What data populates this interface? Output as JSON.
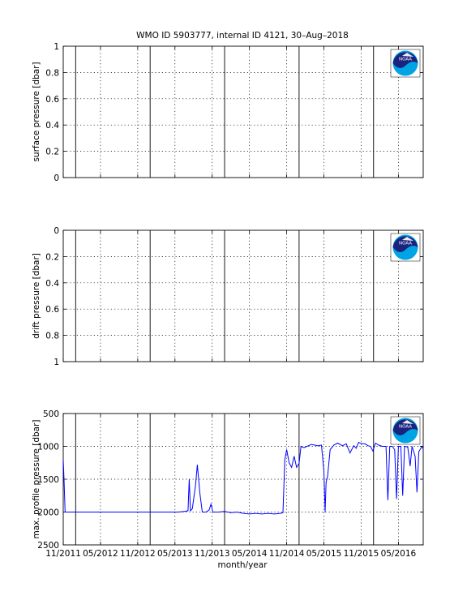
{
  "figure_title": "WMO ID 5903777, internal ID 4121, 30–Aug–2018",
  "logo_text": "NOAA",
  "colors": {
    "series": "#0000ff",
    "axes": "#000000",
    "grid": "#000000",
    "logo_navy": "#1a237e",
    "logo_cyan": "#00a4e4"
  },
  "x_axis": {
    "label": "month/year",
    "ticks": [
      {
        "t": 0,
        "label": "11/2011"
      },
      {
        "t": 6,
        "label": "05/2012"
      },
      {
        "t": 12,
        "label": "11/2012"
      },
      {
        "t": 18,
        "label": "05/2013"
      },
      {
        "t": 24,
        "label": "11/2013"
      },
      {
        "t": 30,
        "label": "05/2014"
      },
      {
        "t": 36,
        "label": "11/2014"
      },
      {
        "t": 42,
        "label": "05/2015"
      },
      {
        "t": 48,
        "label": "11/2015"
      },
      {
        "t": 54,
        "label": "05/2016"
      }
    ],
    "range": [
      0,
      58
    ],
    "year_lines": [
      2,
      14,
      26,
      38,
      50
    ]
  },
  "chart_data": [
    {
      "type": "line",
      "ylabel": "surface pressure [dbar]",
      "ylim": [
        0,
        1
      ],
      "y_reversed": false,
      "yticks": [
        0,
        0.2,
        0.4,
        0.6,
        0.8,
        1
      ],
      "ytick_labels": [
        "0",
        "0.2",
        "0.4",
        "0.6",
        "0.8",
        "1"
      ],
      "grid": true,
      "series": []
    },
    {
      "type": "line",
      "ylabel": "drift pressure [dbar]",
      "ylim": [
        0,
        1
      ],
      "y_reversed": true,
      "yticks": [
        0,
        0.2,
        0.4,
        0.6,
        0.8,
        1
      ],
      "ytick_labels": [
        "0",
        "0.2",
        "0.4",
        "0.6",
        "0.8",
        "1"
      ],
      "grid": true,
      "series": []
    },
    {
      "type": "line",
      "ylabel": "max. profile pressure [dbar]",
      "ylim": [
        500,
        2500
      ],
      "y_reversed": true,
      "yticks": [
        500,
        1000,
        1500,
        2000,
        2500
      ],
      "ytick_labels": [
        "500",
        "1000",
        "1500",
        "2000",
        "2500"
      ],
      "grid": true,
      "series": [
        {
          "points": [
            [
              0.0,
              1200
            ],
            [
              0.15,
              1550
            ],
            [
              0.3,
              2000
            ],
            [
              1,
              2000
            ],
            [
              3,
              2000
            ],
            [
              5,
              2000
            ],
            [
              7,
              2000
            ],
            [
              9,
              2000
            ],
            [
              11,
              2000
            ],
            [
              13,
              2000
            ],
            [
              15,
              2000
            ],
            [
              17,
              2000
            ],
            [
              18.5,
              2000
            ],
            [
              19.5,
              1990
            ],
            [
              20.1,
              1980
            ],
            [
              20.3,
              1500
            ],
            [
              20.5,
              1980
            ],
            [
              20.8,
              1950
            ],
            [
              21.3,
              1600
            ],
            [
              21.6,
              1280
            ],
            [
              22.0,
              1700
            ],
            [
              22.4,
              2000
            ],
            [
              23.0,
              2000
            ],
            [
              23.5,
              1970
            ],
            [
              23.8,
              1880
            ],
            [
              24.1,
              2000
            ],
            [
              25,
              2000
            ],
            [
              26,
              1990
            ],
            [
              27,
              2010
            ],
            [
              28,
              2000
            ],
            [
              29,
              2020
            ],
            [
              30,
              2030
            ],
            [
              31,
              2020
            ],
            [
              32,
              2030
            ],
            [
              33,
              2020
            ],
            [
              34,
              2030
            ],
            [
              35,
              2020
            ],
            [
              35.4,
              2010
            ],
            [
              35.7,
              1200
            ],
            [
              36.0,
              1050
            ],
            [
              36.4,
              1250
            ],
            [
              36.8,
              1320
            ],
            [
              37.2,
              1150
            ],
            [
              37.6,
              1320
            ],
            [
              38.0,
              1260
            ],
            [
              38.3,
              1000
            ],
            [
              38.8,
              1020
            ],
            [
              39.5,
              990
            ],
            [
              40,
              970
            ],
            [
              41,
              990
            ],
            [
              41.6,
              980
            ],
            [
              42.0,
              1380
            ],
            [
              42.2,
              2000
            ],
            [
              42.35,
              1550
            ],
            [
              42.6,
              1450
            ],
            [
              43.0,
              1050
            ],
            [
              43.6,
              980
            ],
            [
              44.2,
              950
            ],
            [
              45.0,
              990
            ],
            [
              45.6,
              960
            ],
            [
              46.2,
              1100
            ],
            [
              46.8,
              990
            ],
            [
              47.2,
              1030
            ],
            [
              47.6,
              940
            ],
            [
              48.1,
              960
            ],
            [
              48.6,
              960
            ],
            [
              49.1,
              990
            ],
            [
              49.5,
              1000
            ],
            [
              49.9,
              1070
            ],
            [
              50.3,
              950
            ],
            [
              50.8,
              980
            ],
            [
              51.4,
              1000
            ],
            [
              52.0,
              1000
            ],
            [
              52.3,
              1820
            ],
            [
              52.6,
              1000
            ],
            [
              53.0,
              1000
            ],
            [
              53.4,
              1050
            ],
            [
              53.7,
              1800
            ],
            [
              54.0,
              1000
            ],
            [
              54.4,
              1000
            ],
            [
              54.7,
              1750
            ],
            [
              55.0,
              1000
            ],
            [
              55.5,
              1010
            ],
            [
              55.9,
              1300
            ],
            [
              56.2,
              1000
            ],
            [
              56.7,
              1150
            ],
            [
              57.0,
              1700
            ],
            [
              57.3,
              1080
            ],
            [
              57.8,
              1000
            ],
            [
              58.0,
              1040
            ]
          ]
        }
      ]
    }
  ]
}
